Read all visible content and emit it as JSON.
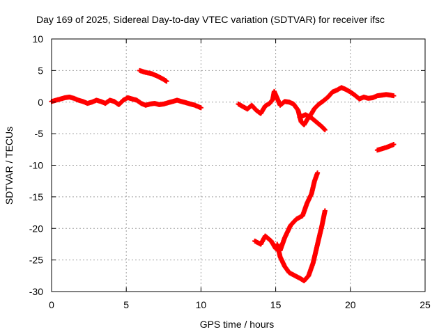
{
  "chart_data": {
    "type": "scatter",
    "title": "Day 169 of 2025, Sidereal Day-to-day VTEC variation (SDTVAR) for receiver ifsc",
    "xlabel": "GPS time / hours",
    "ylabel": "SDTVAR / TECUs",
    "xlim": [
      0,
      25
    ],
    "ylim": [
      -30,
      10
    ],
    "x_ticks": [
      0,
      5,
      10,
      15,
      20,
      25
    ],
    "y_ticks": [
      -30,
      -25,
      -20,
      -15,
      -10,
      -5,
      0,
      5,
      10
    ],
    "grid": true,
    "marker": "plus",
    "series": [
      {
        "color": "#ff0000",
        "segments": [
          [
            [
              0.0,
              0.1
            ],
            [
              0.3,
              0.3
            ],
            [
              0.6,
              0.5
            ],
            [
              0.9,
              0.7
            ],
            [
              1.2,
              0.8
            ],
            [
              1.5,
              0.6
            ],
            [
              1.8,
              0.3
            ],
            [
              2.1,
              0.1
            ],
            [
              2.4,
              -0.2
            ],
            [
              2.7,
              0.0
            ],
            [
              3.0,
              0.3
            ],
            [
              3.3,
              0.1
            ],
            [
              3.6,
              -0.2
            ],
            [
              3.9,
              0.3
            ],
            [
              4.2,
              0.1
            ],
            [
              4.5,
              -0.4
            ],
            [
              4.8,
              0.3
            ],
            [
              5.1,
              0.7
            ],
            [
              5.4,
              0.5
            ],
            [
              5.7,
              0.3
            ],
            [
              6.0,
              -0.2
            ],
            [
              6.3,
              -0.5
            ],
            [
              6.6,
              -0.3
            ],
            [
              6.9,
              -0.2
            ],
            [
              7.2,
              -0.4
            ],
            [
              7.5,
              -0.3
            ],
            [
              7.8,
              -0.1
            ],
            [
              8.1,
              0.1
            ],
            [
              8.4,
              0.3
            ],
            [
              8.7,
              0.1
            ],
            [
              9.0,
              -0.1
            ],
            [
              9.3,
              -0.3
            ],
            [
              9.6,
              -0.5
            ],
            [
              9.9,
              -0.8
            ],
            [
              10.0,
              -0.9
            ]
          ],
          [
            [
              5.9,
              5.0
            ],
            [
              6.3,
              4.7
            ],
            [
              6.7,
              4.5
            ],
            [
              7.1,
              4.1
            ],
            [
              7.5,
              3.6
            ],
            [
              7.7,
              3.3
            ]
          ],
          [
            [
              12.5,
              -0.3
            ],
            [
              12.8,
              -0.7
            ],
            [
              13.1,
              -1.1
            ],
            [
              13.4,
              -0.5
            ],
            [
              13.7,
              -1.3
            ],
            [
              14.0,
              -1.8
            ],
            [
              14.3,
              -0.6
            ],
            [
              14.6,
              -0.2
            ],
            [
              14.8,
              0.4
            ],
            [
              14.9,
              1.7
            ],
            [
              15.1,
              0.6
            ],
            [
              15.3,
              -0.5
            ],
            [
              15.6,
              0.1
            ],
            [
              15.9,
              0.0
            ],
            [
              16.2,
              -0.3
            ],
            [
              16.5,
              -1.3
            ],
            [
              16.7,
              -3.1
            ],
            [
              16.9,
              -3.6
            ],
            [
              17.1,
              -2.8
            ],
            [
              17.4,
              -1.8
            ],
            [
              17.6,
              -1.0
            ],
            [
              17.9,
              -0.3
            ],
            [
              18.2,
              0.2
            ],
            [
              18.5,
              0.8
            ],
            [
              18.8,
              1.6
            ],
            [
              19.1,
              1.9
            ],
            [
              19.4,
              2.3
            ],
            [
              19.7,
              2.0
            ],
            [
              20.0,
              1.6
            ],
            [
              20.3,
              1.1
            ],
            [
              20.6,
              0.5
            ],
            [
              20.9,
              0.8
            ],
            [
              21.2,
              0.6
            ],
            [
              21.5,
              0.7
            ],
            [
              21.8,
              1.0
            ],
            [
              22.1,
              1.1
            ],
            [
              22.4,
              1.2
            ],
            [
              22.7,
              1.1
            ],
            [
              22.9,
              1.0
            ]
          ],
          [
            [
              16.6,
              -2.4
            ],
            [
              17.0,
              -2.0
            ],
            [
              17.4,
              -2.5
            ],
            [
              17.8,
              -3.3
            ],
            [
              18.1,
              -3.9
            ],
            [
              18.3,
              -4.4
            ]
          ],
          [
            [
              21.8,
              -7.6
            ],
            [
              22.1,
              -7.4
            ],
            [
              22.5,
              -7.1
            ],
            [
              22.9,
              -6.7
            ]
          ],
          [
            [
              13.6,
              -22.0
            ],
            [
              14.0,
              -22.5
            ],
            [
              14.3,
              -21.2
            ],
            [
              14.7,
              -22.0
            ],
            [
              15.0,
              -23.2
            ],
            [
              15.3,
              -23.5
            ],
            [
              15.6,
              -21.5
            ],
            [
              16.0,
              -19.5
            ],
            [
              16.4,
              -18.5
            ],
            [
              16.8,
              -18.0
            ],
            [
              17.1,
              -16.0
            ],
            [
              17.4,
              -14.5
            ],
            [
              17.6,
              -12.5
            ],
            [
              17.8,
              -11.2
            ]
          ],
          [
            [
              15.1,
              -22.5
            ],
            [
              15.3,
              -24.5
            ],
            [
              15.6,
              -26.0
            ],
            [
              15.9,
              -27.0
            ],
            [
              16.3,
              -27.5
            ],
            [
              16.7,
              -28.0
            ],
            [
              16.9,
              -28.3
            ],
            [
              17.2,
              -27.5
            ],
            [
              17.5,
              -25.5
            ],
            [
              17.7,
              -23.5
            ],
            [
              17.9,
              -21.5
            ],
            [
              18.1,
              -19.5
            ],
            [
              18.3,
              -17.2
            ]
          ]
        ]
      }
    ]
  }
}
